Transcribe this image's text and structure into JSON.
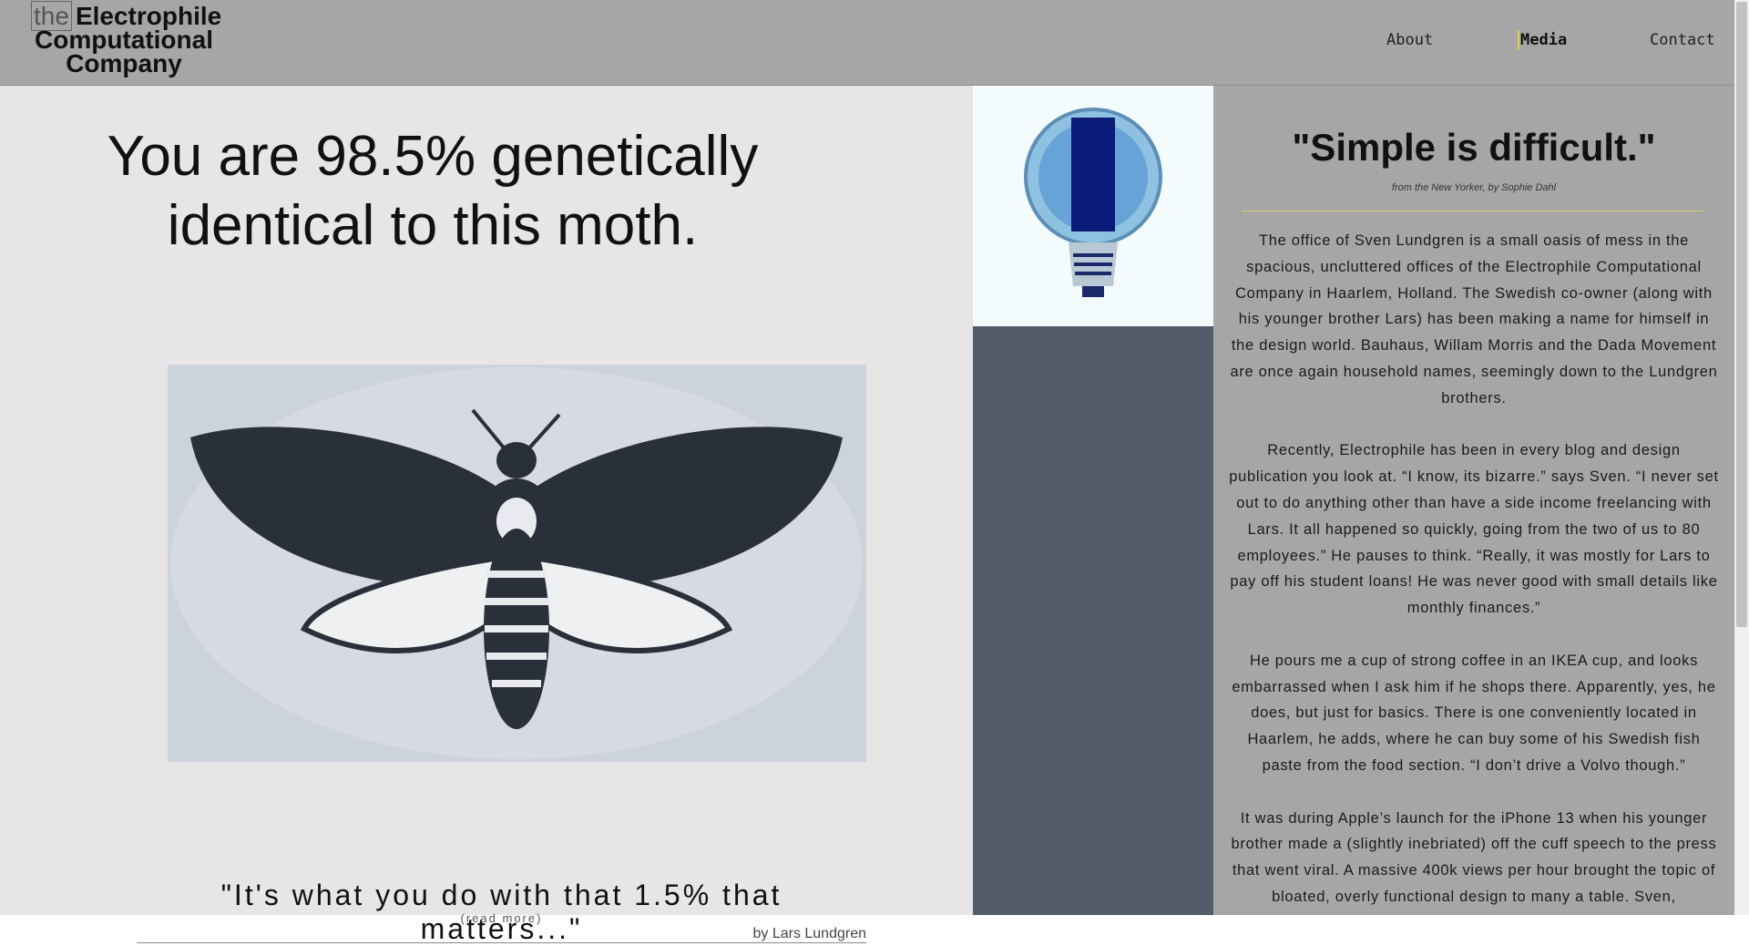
{
  "header": {
    "logo": {
      "prefix": "the",
      "line1": "Electrophile",
      "line2": "Computational",
      "line3": "Company"
    },
    "nav": [
      "About",
      "Media",
      "Contact"
    ]
  },
  "hero": {
    "headline_line1": "You are 98.5% genetically",
    "headline_line2": "identical to this moth.",
    "quote": "\"It's what you do with that 1.5% that matters...\"",
    "read_more": "(read more)",
    "byline": "by Lars Lundgren"
  },
  "article": {
    "title": "\"Simple is difficult.\"",
    "source": "from the New Yorker, by Sophie Dahl",
    "paragraphs": [
      "The office of Sven Lundgren is a small oasis of mess in the spacious, uncluttered offices of the Electrophile Computational Company in Haarlem, Holland. The Swedish co-owner (along with his younger brother Lars) has been making a name for himself in the design world. Bauhaus, Willam Morris and the Dada Movement are once again household names, seemingly down to the Lundgren brothers.",
      "Recently, Electrophile has been in every blog and design publication you look at. “I know, its bizarre.” says Sven. “I never set out to do anything other than have a side income freelancing with Lars. It all happened so quickly, going from the two of us to 80 employees.” He pauses to think. “Really, it was mostly for Lars to pay off his student loans! He was never good with small details like monthly finances.”",
      "He pours me a cup of strong coffee in an IKEA cup, and looks embarrassed when I ask him if he shops there. Apparently, yes, he does, but just for basics. There is one conveniently located in Haarlem, he adds, where he can buy some of his Swedish fish paste from the food section. “I don’t drive a Volvo though.”",
      "It was during Apple’s launch for the iPhone 13 when his younger brother made a (slightly inebriated) off the cuff speech to the press that went viral. A massive 400k views per hour brought the topic of bloated, overly functional design to many a table. Sven,"
    ]
  }
}
